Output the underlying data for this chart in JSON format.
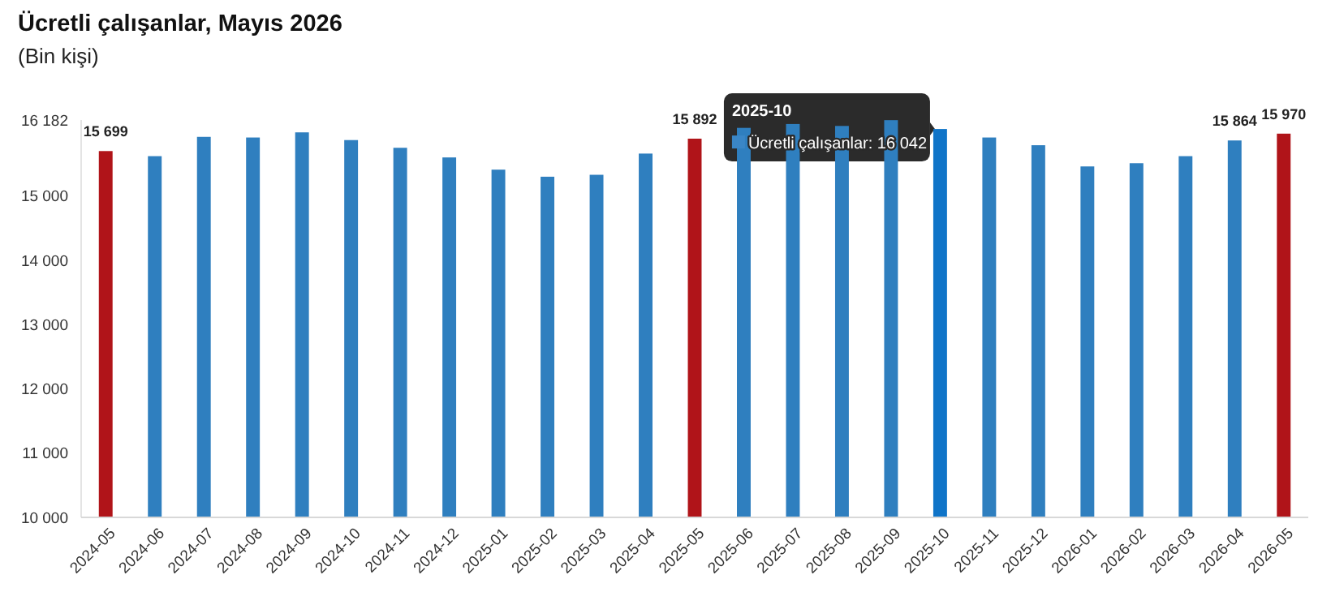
{
  "chart_data": {
    "type": "bar",
    "title": "Ücretli çalışanlar, Mayıs 2026",
    "subtitle": "(Bin kişi)",
    "categories": [
      "2024-05",
      "2024-06",
      "2024-07",
      "2024-08",
      "2024-09",
      "2024-10",
      "2024-11",
      "2024-12",
      "2025-01",
      "2025-02",
      "2025-03",
      "2025-04",
      "2025-05",
      "2025-06",
      "2025-07",
      "2025-08",
      "2025-09",
      "2025-10",
      "2025-11",
      "2025-12",
      "2026-01",
      "2026-02",
      "2026-03",
      "2026-04",
      "2026-05"
    ],
    "values": [
      15699,
      15620,
      15920,
      15910,
      15990,
      15870,
      15750,
      15600,
      15410,
      15300,
      15330,
      15660,
      15892,
      16060,
      16120,
      16090,
      16180,
      16042,
      15910,
      15790,
      15460,
      15510,
      15620,
      15864,
      15970
    ],
    "colors": [
      "#b01419",
      "#2f7fbf",
      "#2f7fbf",
      "#2f7fbf",
      "#2f7fbf",
      "#2f7fbf",
      "#2f7fbf",
      "#2f7fbf",
      "#2f7fbf",
      "#2f7fbf",
      "#2f7fbf",
      "#2f7fbf",
      "#b01419",
      "#2f7fbf",
      "#2f7fbf",
      "#2f7fbf",
      "#2f7fbf",
      "#0f74c8",
      "#2f7fbf",
      "#2f7fbf",
      "#2f7fbf",
      "#2f7fbf",
      "#2f7fbf",
      "#2f7fbf",
      "#b01419"
    ],
    "value_labels": [
      "15 699",
      null,
      null,
      null,
      null,
      null,
      null,
      null,
      null,
      null,
      null,
      null,
      "15 892",
      null,
      null,
      null,
      null,
      null,
      null,
      null,
      null,
      null,
      null,
      "15 864",
      "15 970"
    ],
    "ylim": [
      10000,
      16182
    ],
    "yticks": [
      {
        "value": 10000,
        "label": "10 000"
      },
      {
        "value": 11000,
        "label": "11 000"
      },
      {
        "value": 12000,
        "label": "12 000"
      },
      {
        "value": 13000,
        "label": "13 000"
      },
      {
        "value": 14000,
        "label": "14 000"
      },
      {
        "value": 15000,
        "label": "15 000"
      },
      {
        "value": 16182,
        "label": "16 182"
      }
    ],
    "grid": false,
    "annotations": [
      {
        "text": "2025-10\nÜcretli çalışanlar: 16 042",
        "x": "2025-10",
        "y": 16042
      }
    ]
  }
}
